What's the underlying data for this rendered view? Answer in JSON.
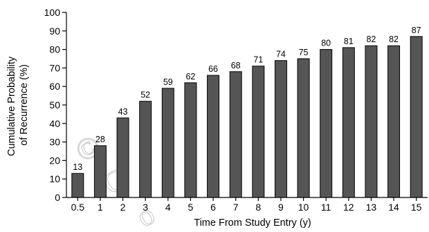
{
  "chart_data": {
    "type": "bar",
    "categories": [
      "0.5",
      "1",
      "2",
      "3",
      "4",
      "5",
      "6",
      "7",
      "8",
      "9",
      "10",
      "11",
      "12",
      "13",
      "14",
      "15"
    ],
    "values": [
      13,
      28,
      43,
      52,
      59,
      62,
      66,
      68,
      71,
      74,
      75,
      80,
      81,
      82,
      82,
      87
    ],
    "data_labels": [
      "13",
      "28",
      "43",
      "52",
      "59",
      "62",
      "66",
      "68",
      "71",
      "74",
      "75",
      "80",
      "81",
      "82",
      "82",
      "87"
    ],
    "title": "",
    "xlabel": "Time From Study Entry (y)",
    "ylabel_lines": [
      "Cumulative Probability",
      "of Recurrence (%)"
    ],
    "ylim": [
      0,
      100
    ],
    "yticks": [
      0,
      10,
      20,
      30,
      40,
      50,
      60,
      70,
      80,
      90,
      100
    ],
    "grid": false,
    "legend": "none",
    "bar_color": "#555555",
    "bar_edge_color": "#000000"
  },
  "watermark": {
    "glyphs": [
      "©",
      "C",
      "o"
    ]
  }
}
